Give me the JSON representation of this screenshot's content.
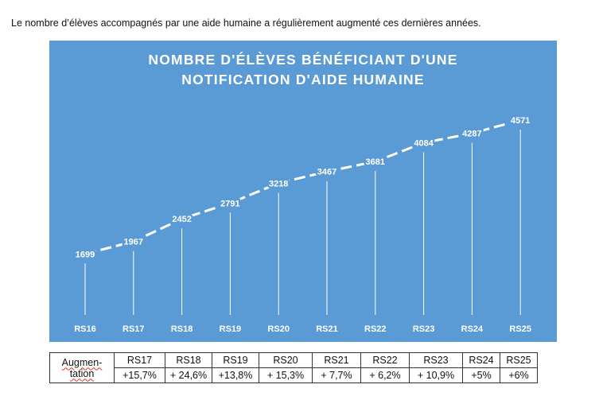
{
  "intro_text": "Le nombre d’élèves accompagnés par une aide humaine a régulièrement augmenté ces dernières années.",
  "colors": {
    "chart_bg": "#5b9bd5",
    "line": "#ffffff",
    "text": "#ffffff"
  },
  "chart_data": {
    "type": "line",
    "title_lines": [
      "NOMBRE D'ÉLÈVES BÉNÉFICIANT D'UNE",
      "NOTIFICATION D'AIDE HUMAINE"
    ],
    "categories": [
      "RS16",
      "RS17",
      "RS18",
      "RS19",
      "RS20",
      "RS21",
      "RS22",
      "RS23",
      "RS24",
      "RS25"
    ],
    "values": [
      1699,
      1967,
      2452,
      2791,
      3218,
      3467,
      3681,
      4084,
      4287,
      4571
    ],
    "data_labels": [
      "1699",
      "1967",
      "2452",
      "2791",
      "3218",
      "3467",
      "3681",
      "4084",
      "4287",
      "4571"
    ],
    "line_style": "dashed",
    "drop_lines": true,
    "ylim": [
      0,
      4800
    ]
  },
  "table": {
    "header_label_line1": "Augmen-",
    "header_label_line2": "tation",
    "columns": [
      "RS17",
      "RS18",
      "RS19",
      "RS20",
      "RS21",
      "RS22",
      "RS23",
      "RS24",
      "RS25"
    ],
    "values": [
      "+15,7%",
      "+ 24,6%",
      "+13,8%",
      "+ 15,3%",
      "+ 7,7%",
      "+ 6,2%",
      "+ 10,9%",
      "+5%",
      "+6%"
    ]
  }
}
